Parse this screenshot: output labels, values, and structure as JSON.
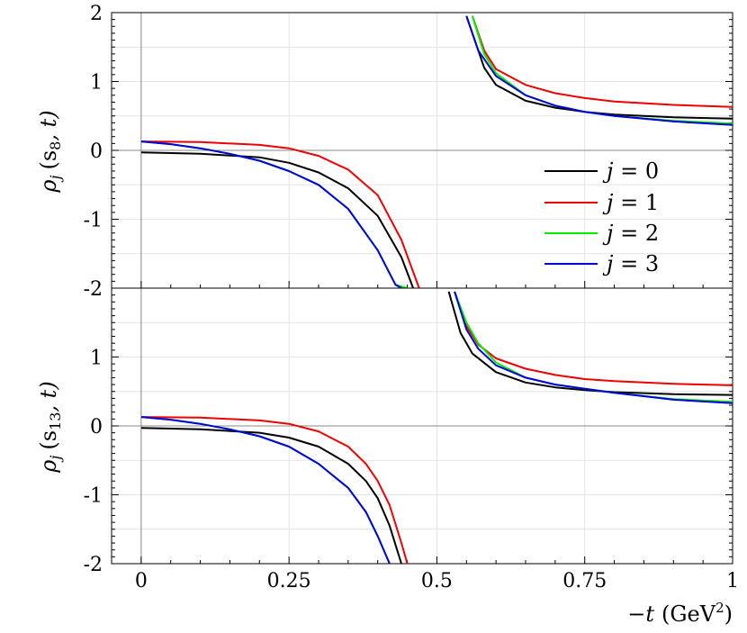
{
  "chart_data": [
    {
      "type": "line",
      "panel": "top",
      "ylabel": "ρj (s8, t)",
      "ylabel_main": "ρ",
      "ylabel_sub": "j",
      "ylabel_args": "(s",
      "ylabel_args_sub": "8",
      "ylabel_args_end": ", t)",
      "xlim": [
        -0.05,
        1
      ],
      "ylim": [
        -2,
        2
      ],
      "yticks": [
        "2",
        "1",
        "0",
        "-1",
        "-2"
      ],
      "ytick_values": [
        2,
        1,
        0,
        -1,
        -2
      ],
      "grid": true,
      "legend_placement": "right-center",
      "pole": 0.52,
      "series": [
        {
          "name": "j = 0",
          "color": "#000000",
          "x": [
            0,
            0.1,
            0.2,
            0.25,
            0.3,
            0.35,
            0.4,
            0.44,
            0.46,
            0.55,
            0.58,
            0.6,
            0.65,
            0.7,
            0.75,
            0.8,
            0.9,
            1.0
          ],
          "y": [
            -0.03,
            -0.05,
            -0.1,
            -0.18,
            -0.32,
            -0.55,
            -0.95,
            -1.55,
            -2.0,
            1.95,
            1.2,
            0.95,
            0.72,
            0.62,
            0.56,
            0.52,
            0.48,
            0.46
          ]
        },
        {
          "name": "j = 1",
          "color": "#ee0000",
          "x": [
            0,
            0.1,
            0.2,
            0.25,
            0.3,
            0.35,
            0.4,
            0.44,
            0.47,
            0.56,
            0.58,
            0.6,
            0.65,
            0.7,
            0.75,
            0.8,
            0.9,
            1.0
          ],
          "y": [
            0.13,
            0.12,
            0.08,
            0.03,
            -0.08,
            -0.28,
            -0.65,
            -1.3,
            -2.0,
            1.95,
            1.45,
            1.18,
            0.95,
            0.83,
            0.76,
            0.71,
            0.66,
            0.63
          ]
        },
        {
          "name": "j = 2",
          "color": "#00ee00",
          "x": [
            0,
            0.05,
            0.1,
            0.15,
            0.2,
            0.25,
            0.3,
            0.35,
            0.4,
            0.43,
            0.45,
            0.56,
            0.58,
            0.6,
            0.65,
            0.7,
            0.75,
            0.8,
            0.9,
            1.0
          ],
          "y": [
            0.13,
            0.09,
            0.03,
            -0.05,
            -0.15,
            -0.3,
            -0.5,
            -0.85,
            -1.45,
            -1.95,
            -2.0,
            1.95,
            1.4,
            1.12,
            0.8,
            0.65,
            0.56,
            0.5,
            0.43,
            0.39
          ]
        },
        {
          "name": "j = 3",
          "color": "#0000dd",
          "x": [
            0,
            0.05,
            0.1,
            0.15,
            0.2,
            0.25,
            0.3,
            0.35,
            0.4,
            0.43,
            0.44,
            0.55,
            0.57,
            0.6,
            0.65,
            0.7,
            0.75,
            0.8,
            0.9,
            1.0
          ],
          "y": [
            0.13,
            0.09,
            0.03,
            -0.05,
            -0.15,
            -0.3,
            -0.5,
            -0.85,
            -1.45,
            -1.95,
            -2.0,
            1.95,
            1.45,
            1.08,
            0.8,
            0.65,
            0.56,
            0.5,
            0.42,
            0.37
          ]
        }
      ]
    },
    {
      "type": "line",
      "panel": "bottom",
      "ylabel": "ρj (s13, t)",
      "ylabel_main": "ρ",
      "ylabel_sub": "j",
      "ylabel_args": "(s",
      "ylabel_args_sub": "13",
      "ylabel_args_end": ", t)",
      "xlabel": "−t (GeV2)",
      "xlabel_main": "−t",
      "xlabel_unit": "(GeV",
      "xlabel_sup": "2",
      "xlabel_end": ")",
      "xlim": [
        -0.05,
        1
      ],
      "ylim": [
        -2,
        2
      ],
      "xticks": [
        "0",
        "0.25",
        "0.5",
        "0.75",
        "1"
      ],
      "xtick_values": [
        0,
        0.25,
        0.5,
        0.75,
        1
      ],
      "yticks": [
        "1",
        "0",
        "-1",
        "-2"
      ],
      "ytick_values": [
        1,
        0,
        -1,
        -2
      ],
      "grid": true,
      "series": [
        {
          "name": "j = 0",
          "color": "#000000",
          "x": [
            0,
            0.1,
            0.2,
            0.25,
            0.3,
            0.35,
            0.38,
            0.4,
            0.42,
            0.44,
            0.52,
            0.54,
            0.56,
            0.6,
            0.65,
            0.7,
            0.75,
            0.8,
            0.9,
            1.0
          ],
          "y": [
            -0.03,
            -0.05,
            -0.1,
            -0.17,
            -0.3,
            -0.55,
            -0.8,
            -1.05,
            -1.45,
            -2.0,
            1.95,
            1.35,
            1.05,
            0.78,
            0.63,
            0.56,
            0.52,
            0.49,
            0.46,
            0.45
          ]
        },
        {
          "name": "j = 1",
          "color": "#ee0000",
          "x": [
            0,
            0.1,
            0.2,
            0.25,
            0.3,
            0.35,
            0.38,
            0.4,
            0.42,
            0.44,
            0.45,
            0.53,
            0.55,
            0.57,
            0.6,
            0.65,
            0.7,
            0.75,
            0.8,
            0.9,
            1.0
          ],
          "y": [
            0.13,
            0.12,
            0.08,
            0.03,
            -0.08,
            -0.3,
            -0.55,
            -0.8,
            -1.15,
            -1.7,
            -2.0,
            1.95,
            1.45,
            1.18,
            0.98,
            0.83,
            0.74,
            0.68,
            0.65,
            0.61,
            0.59
          ]
        },
        {
          "name": "j = 2",
          "color": "#00ee00",
          "x": [
            0,
            0.05,
            0.1,
            0.15,
            0.2,
            0.25,
            0.3,
            0.35,
            0.38,
            0.4,
            0.42,
            0.53,
            0.55,
            0.57,
            0.6,
            0.65,
            0.7,
            0.75,
            0.8,
            0.9,
            1.0
          ],
          "y": [
            0.13,
            0.09,
            0.03,
            -0.05,
            -0.15,
            -0.3,
            -0.55,
            -0.9,
            -1.25,
            -1.6,
            -2.0,
            1.95,
            1.5,
            1.2,
            0.92,
            0.7,
            0.6,
            0.54,
            0.48,
            0.39,
            0.35
          ]
        },
        {
          "name": "j = 3",
          "color": "#0000dd",
          "x": [
            0,
            0.05,
            0.1,
            0.15,
            0.2,
            0.25,
            0.3,
            0.35,
            0.38,
            0.4,
            0.42,
            0.53,
            0.55,
            0.57,
            0.6,
            0.65,
            0.7,
            0.75,
            0.8,
            0.9,
            1.0
          ],
          "y": [
            0.13,
            0.09,
            0.03,
            -0.05,
            -0.15,
            -0.3,
            -0.55,
            -0.9,
            -1.25,
            -1.6,
            -2.0,
            1.95,
            1.4,
            1.12,
            0.88,
            0.7,
            0.6,
            0.54,
            0.48,
            0.38,
            0.33
          ]
        }
      ]
    }
  ],
  "legend": [
    "j = 0",
    "j = 1",
    "j = 2",
    "j = 3"
  ],
  "legend_parts": [
    {
      "var": "j",
      "rest": " = 0"
    },
    {
      "var": "j",
      "rest": " = 1"
    },
    {
      "var": "j",
      "rest": " = 2"
    },
    {
      "var": "j",
      "rest": " = 3"
    }
  ]
}
